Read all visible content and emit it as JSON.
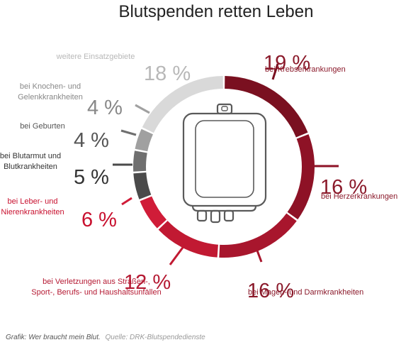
{
  "chart_data": {
    "type": "pie",
    "title": "Blutspenden retten Leben",
    "slices": [
      {
        "label_lines": [
          "bei Krebserkrankungen"
        ],
        "value": 19,
        "value_text": "19 %",
        "color": "#7a1020",
        "text_color": "#8b1a2b"
      },
      {
        "label_lines": [
          "bei Herzerkrankungen"
        ],
        "value": 16,
        "value_text": "16 %",
        "color": "#8e1226",
        "text_color": "#8b1a2b"
      },
      {
        "label_lines": [
          "bei Magen- und Darmkrankheiten"
        ],
        "value": 16,
        "value_text": "16 %",
        "color": "#a8162d",
        "text_color": "#8b1a2b"
      },
      {
        "label_lines": [
          "bei Verletzungen aus Straßen-,",
          "Sport-, Berufs- und Haushaltsunfällen"
        ],
        "value": 12,
        "value_text": "12 %",
        "color": "#c11932",
        "text_color": "#b51a33"
      },
      {
        "label_lines": [
          "bei Leber- und",
          "Nierenkrankheiten"
        ],
        "value": 6,
        "value_text": "6 %",
        "color": "#d01c38",
        "text_color": "#c8102e"
      },
      {
        "label_lines": [
          "bei Blutarmut und",
          "Blutkrankheiten"
        ],
        "value": 5,
        "value_text": "5 %",
        "color": "#4a4a4a",
        "text_color": "#333333"
      },
      {
        "label_lines": [
          "bei Geburten"
        ],
        "value": 4,
        "value_text": "4 %",
        "color": "#6f6f6f",
        "text_color": "#555555"
      },
      {
        "label_lines": [
          "bei Knochen- und",
          "Gelenkkrankheiten"
        ],
        "value": 4,
        "value_text": "4 %",
        "color": "#a0a0a0",
        "text_color": "#888888"
      },
      {
        "label_lines": [
          "weitere Einsatzgebiete"
        ],
        "value": 18,
        "value_text": "18 %",
        "color": "#d9d9d9",
        "text_color": "#b8b8b8"
      }
    ]
  },
  "footer": {
    "grafik_label": "Grafik: Wer braucht mein Blut.",
    "source_label": "Quelle: DRK-Blutspendedienste"
  },
  "icons": {
    "center": "blood-bag-icon"
  }
}
